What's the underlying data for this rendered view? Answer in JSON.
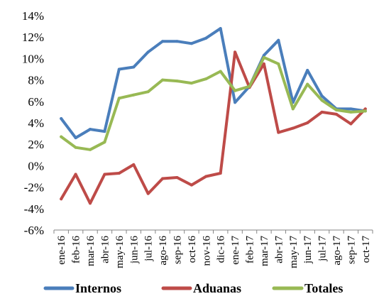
{
  "chart_data": {
    "type": "line",
    "title": "",
    "xlabel": "",
    "ylabel": "",
    "ylim": [
      -6,
      14
    ],
    "y_ticks": [
      14,
      12,
      10,
      8,
      6,
      4,
      2,
      0,
      -2,
      -4,
      -6
    ],
    "y_tick_labels": [
      "14%",
      "12%",
      "10%",
      "8%",
      "6%",
      "4%",
      "2%",
      "0%",
      "-2%",
      "-4%",
      "-6%"
    ],
    "grid": false,
    "legend_position": "bottom",
    "categories": [
      "ene-16",
      "feb-16",
      "mar-16",
      "abr-16",
      "may-16",
      "jun-16",
      "jul-16",
      "ago-16",
      "sep-16",
      "oct-16",
      "nov-16",
      "dic-16",
      "ene-17",
      "feb-17",
      "mar-17",
      "abr-17",
      "may-17",
      "jun-17",
      "jul-17",
      "ago-17",
      "sep-17",
      "oct-17"
    ],
    "series": [
      {
        "name": "Internos",
        "color": "#4a7ebb",
        "values": [
          4.4,
          2.6,
          3.4,
          3.2,
          9.0,
          9.2,
          10.6,
          11.6,
          11.6,
          11.4,
          11.9,
          12.8,
          5.9,
          7.4,
          10.3,
          11.7,
          5.9,
          8.9,
          6.5,
          5.3,
          5.3,
          5.1
        ]
      },
      {
        "name": "Aduanas",
        "color": "#be4b48",
        "values": [
          -3.1,
          -0.8,
          -3.5,
          -0.8,
          -0.7,
          0.1,
          -2.6,
          -1.2,
          -1.1,
          -1.8,
          -1.0,
          -0.7,
          10.6,
          7.3,
          9.5,
          3.1,
          3.5,
          4.0,
          5.0,
          4.8,
          3.9,
          5.3
        ]
      },
      {
        "name": "Totales",
        "color": "#98b954",
        "values": [
          2.7,
          1.7,
          1.5,
          2.2,
          6.3,
          6.6,
          6.9,
          8.0,
          7.9,
          7.7,
          8.1,
          8.8,
          7.0,
          7.4,
          10.1,
          9.5,
          5.3,
          7.6,
          6.1,
          5.2,
          5.0,
          5.1
        ]
      }
    ]
  }
}
